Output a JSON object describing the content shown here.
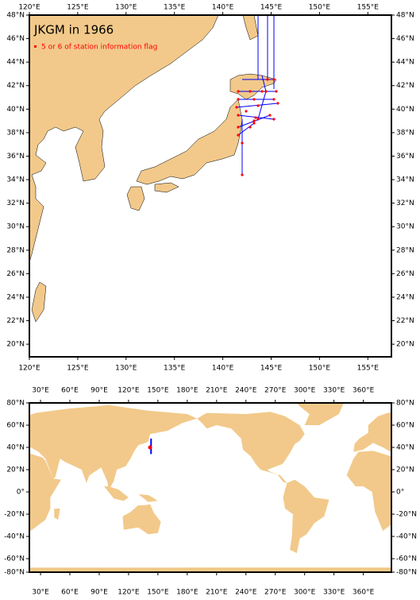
{
  "top_map": {
    "title": "JKGM in 1966",
    "legend": "5 or 6 of station information flag",
    "x_ticks": [
      {
        "value": 120,
        "label": "120°E"
      },
      {
        "value": 125,
        "label": "125°E"
      },
      {
        "value": 130,
        "label": "130°E"
      },
      {
        "value": 135,
        "label": "135°E"
      },
      {
        "value": 140,
        "label": "140°E"
      },
      {
        "value": 145,
        "label": "145°E"
      },
      {
        "value": 150,
        "label": "150°E"
      },
      {
        "value": 155,
        "label": "155°E"
      }
    ],
    "y_ticks": [
      {
        "value": 48,
        "label": "48°N"
      },
      {
        "value": 46,
        "label": "46°N"
      },
      {
        "value": 44,
        "label": "44°N"
      },
      {
        "value": 42,
        "label": "42°N"
      },
      {
        "value": 40,
        "label": "40°N"
      },
      {
        "value": 38,
        "label": "38°N"
      },
      {
        "value": 36,
        "label": "36°N"
      },
      {
        "value": 34,
        "label": "34°N"
      },
      {
        "value": 32,
        "label": "32°N"
      },
      {
        "value": 30,
        "label": "30°N"
      },
      {
        "value": 28,
        "label": "28°N"
      },
      {
        "value": 26,
        "label": "26°N"
      },
      {
        "value": 24,
        "label": "24°N"
      },
      {
        "value": 22,
        "label": "22°N"
      },
      {
        "value": 20,
        "label": "20°N"
      }
    ]
  },
  "world_map": {
    "x_ticks": [
      {
        "value": 30,
        "label": "30°E"
      },
      {
        "value": 60,
        "label": "60°E"
      },
      {
        "value": 90,
        "label": "90°E"
      },
      {
        "value": 120,
        "label": "120°E"
      },
      {
        "value": 150,
        "label": "150°E"
      },
      {
        "value": 180,
        "label": "180°E"
      },
      {
        "value": 210,
        "label": "210°E"
      },
      {
        "value": 240,
        "label": "240°E"
      },
      {
        "value": 270,
        "label": "270°E"
      },
      {
        "value": 300,
        "label": "300°E"
      },
      {
        "value": 330,
        "label": "330°E"
      },
      {
        "value": 360,
        "label": "360°E"
      }
    ],
    "y_ticks": [
      {
        "value": 80,
        "label": "80°N"
      },
      {
        "value": 60,
        "label": "60°N"
      },
      {
        "value": 40,
        "label": "40°N"
      },
      {
        "value": 20,
        "label": "20°N"
      },
      {
        "value": 0,
        "label": "0°"
      },
      {
        "value": -20,
        "label": "-20°N"
      },
      {
        "value": -40,
        "label": "-40°N"
      },
      {
        "value": -60,
        "label": "-60°N"
      },
      {
        "value": -80,
        "label": "-80°N"
      }
    ]
  }
}
